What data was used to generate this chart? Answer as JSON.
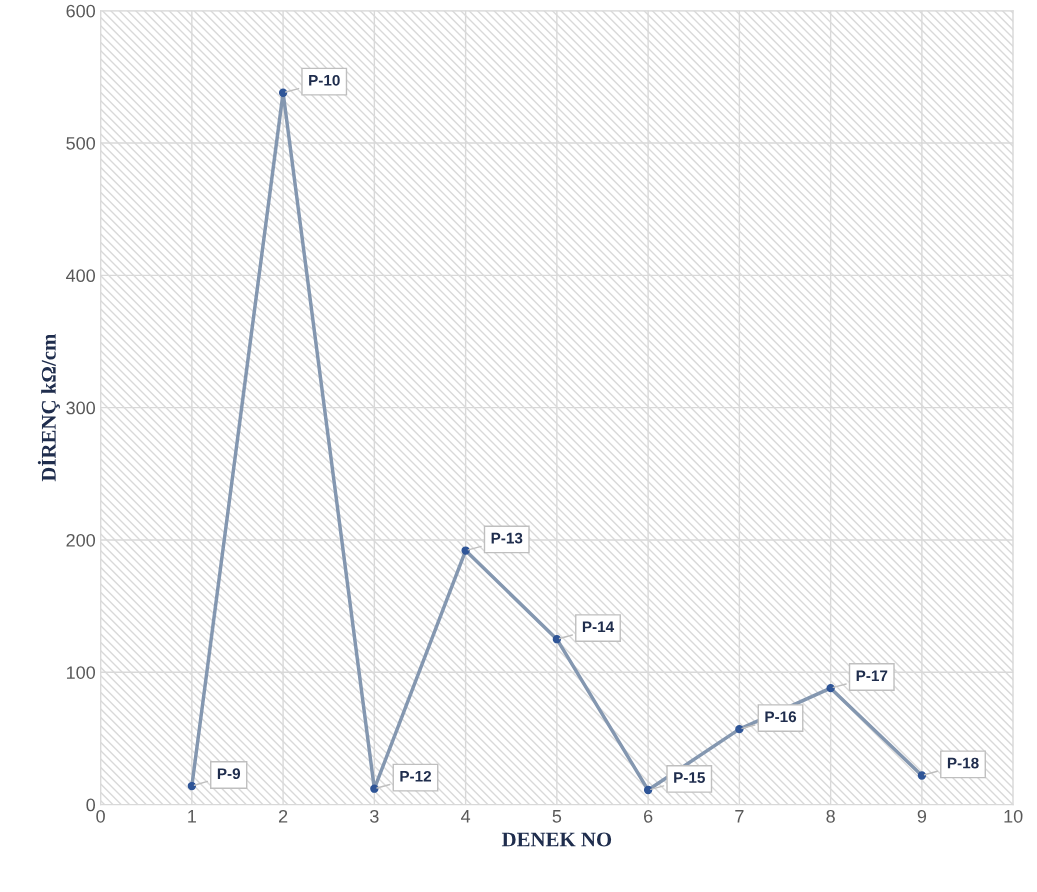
{
  "chart_data": {
    "type": "line",
    "xlabel": "DENEK NO",
    "ylabel": "DİRENÇ kΩ/cm",
    "x": [
      1,
      2,
      3,
      4,
      5,
      6,
      7,
      8,
      9
    ],
    "series": [
      {
        "color": "#8497b0",
        "values": [
          14,
          538,
          12,
          192,
          125,
          11,
          57,
          88,
          22
        ],
        "value_labels": [
          "P-9",
          "P-10",
          "P-12",
          "P-13",
          "P-14",
          "P-15",
          "P-16",
          "P-17",
          "P-18"
        ]
      }
    ],
    "marker": "circle",
    "line_style": "solid",
    "xlim": [
      0,
      10
    ],
    "xticks": [
      0,
      1,
      2,
      3,
      4,
      5,
      6,
      7,
      8,
      9,
      10
    ],
    "ylim": [
      0,
      600
    ],
    "yticks": [
      0,
      100,
      200,
      300,
      400,
      500,
      600
    ],
    "grid": true
  }
}
